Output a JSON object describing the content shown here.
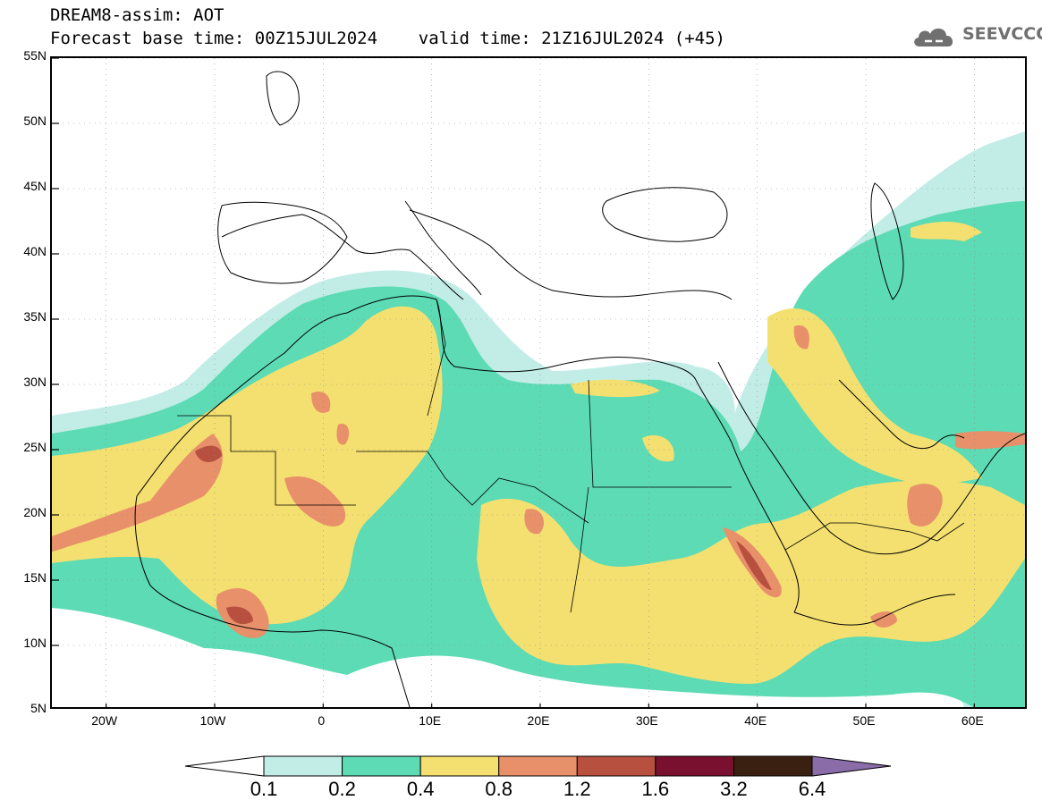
{
  "header": {
    "title": "DREAM8-assim: AOT",
    "time_line": "Forecast base time: 00Z15JUL2024    valid time: 21Z16JUL2024 (+45)"
  },
  "logo": {
    "text": "SEEVCCC",
    "icon": "cloud-icon"
  },
  "axes": {
    "lat_labels": [
      "55N",
      "50N",
      "45N",
      "40N",
      "35N",
      "30N",
      "25N",
      "20N",
      "15N",
      "10N",
      "5N"
    ],
    "lat_values": [
      55,
      50,
      45,
      40,
      35,
      30,
      25,
      20,
      15,
      10,
      5
    ],
    "lon_labels": [
      "20W",
      "10W",
      "0",
      "10E",
      "20E",
      "30E",
      "40E",
      "50E",
      "60E"
    ],
    "lon_values": [
      -20,
      -10,
      0,
      10,
      20,
      30,
      40,
      50,
      60
    ],
    "lon_range": [
      -25,
      65
    ],
    "lat_range": [
      5,
      55
    ],
    "grid": "dotted"
  },
  "colorbar": {
    "ticks": [
      "0.1",
      "0.2",
      "0.4",
      "0.8",
      "1.2",
      "1.6",
      "3.2",
      "6.4"
    ],
    "colors": [
      "#c2ede7",
      "#5cdbb4",
      "#f4e070",
      "#e8906a",
      "#b85040",
      "#7a1030",
      "#3a2010",
      "#8a6ca8"
    ],
    "under_color": "#ffffff"
  }
}
